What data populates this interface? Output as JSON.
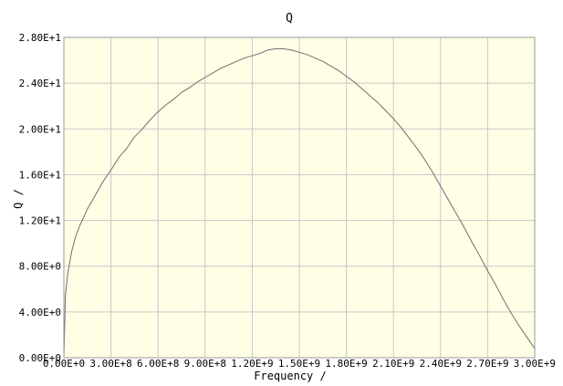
{
  "chart_data": {
    "type": "line",
    "title": "Q",
    "xlabel": "Frequency /",
    "ylabel": "Q /",
    "xlim": [
      0,
      3000000000
    ],
    "ylim": [
      0,
      28
    ],
    "grid": true,
    "plot_background": "#ffffe6",
    "line_color": "#6f6f6f",
    "x_ticks": [
      {
        "value": 0,
        "label": "0.00E+0"
      },
      {
        "value": 300000000,
        "label": "3.00E+8"
      },
      {
        "value": 600000000,
        "label": "6.00E+8"
      },
      {
        "value": 900000000,
        "label": "9.00E+8"
      },
      {
        "value": 1200000000,
        "label": "1.20E+9"
      },
      {
        "value": 1500000000,
        "label": "1.50E+9"
      },
      {
        "value": 1800000000,
        "label": "1.80E+9"
      },
      {
        "value": 2100000000,
        "label": "2.10E+9"
      },
      {
        "value": 2400000000,
        "label": "2.40E+9"
      },
      {
        "value": 2700000000,
        "label": "2.70E+9"
      },
      {
        "value": 3000000000,
        "label": "3.00E+9"
      }
    ],
    "y_ticks": [
      {
        "value": 0,
        "label": "0.00E+0"
      },
      {
        "value": 4,
        "label": "4.00E+0"
      },
      {
        "value": 8,
        "label": "8.00E+0"
      },
      {
        "value": 12,
        "label": "1.20E+1"
      },
      {
        "value": 16,
        "label": "1.60E+1"
      },
      {
        "value": 20,
        "label": "2.00E+1"
      },
      {
        "value": 24,
        "label": "2.40E+1"
      },
      {
        "value": 28,
        "label": "2.80E+1"
      }
    ],
    "series": [
      {
        "x": [
          0,
          10000000,
          25000000,
          50000000,
          75000000,
          100000000,
          150000000,
          200000000,
          250000000,
          300000000,
          350000000,
          400000000,
          450000000,
          500000000,
          550000000,
          600000000,
          650000000,
          700000000,
          750000000,
          800000000,
          850000000,
          900000000,
          950000000,
          1000000000,
          1050000000,
          1100000000,
          1150000000,
          1200000000,
          1250000000,
          1300000000,
          1350000000,
          1400000000,
          1450000000,
          1500000000,
          1550000000,
          1600000000,
          1650000000,
          1700000000,
          1750000000,
          1800000000,
          1850000000,
          1900000000,
          1950000000,
          2000000000,
          2050000000,
          2100000000,
          2150000000,
          2200000000,
          2250000000,
          2300000000,
          2350000000,
          2400000000,
          2450000000,
          2500000000,
          2550000000,
          2600000000,
          2650000000,
          2700000000,
          2750000000,
          2800000000,
          2850000000,
          2900000000,
          2950000000,
          3000000000
        ],
        "y": [
          0,
          5.5,
          7.4,
          9.3,
          10.6,
          11.5,
          13.0,
          14.2,
          15.4,
          16.4,
          17.5,
          18.3,
          19.3,
          20.0,
          20.8,
          21.5,
          22.1,
          22.6,
          23.2,
          23.6,
          24.1,
          24.5,
          24.9,
          25.3,
          25.6,
          25.9,
          26.2,
          26.4,
          26.6,
          26.9,
          27.0,
          27.0,
          26.9,
          26.7,
          26.5,
          26.2,
          25.9,
          25.5,
          25.1,
          24.6,
          24.1,
          23.5,
          22.9,
          22.3,
          21.6,
          20.9,
          20.1,
          19.2,
          18.3,
          17.3,
          16.2,
          15.0,
          13.8,
          12.6,
          11.4,
          10.1,
          8.9,
          7.6,
          6.4,
          5.1,
          3.9,
          2.8,
          1.8,
          0.8
        ]
      }
    ]
  }
}
